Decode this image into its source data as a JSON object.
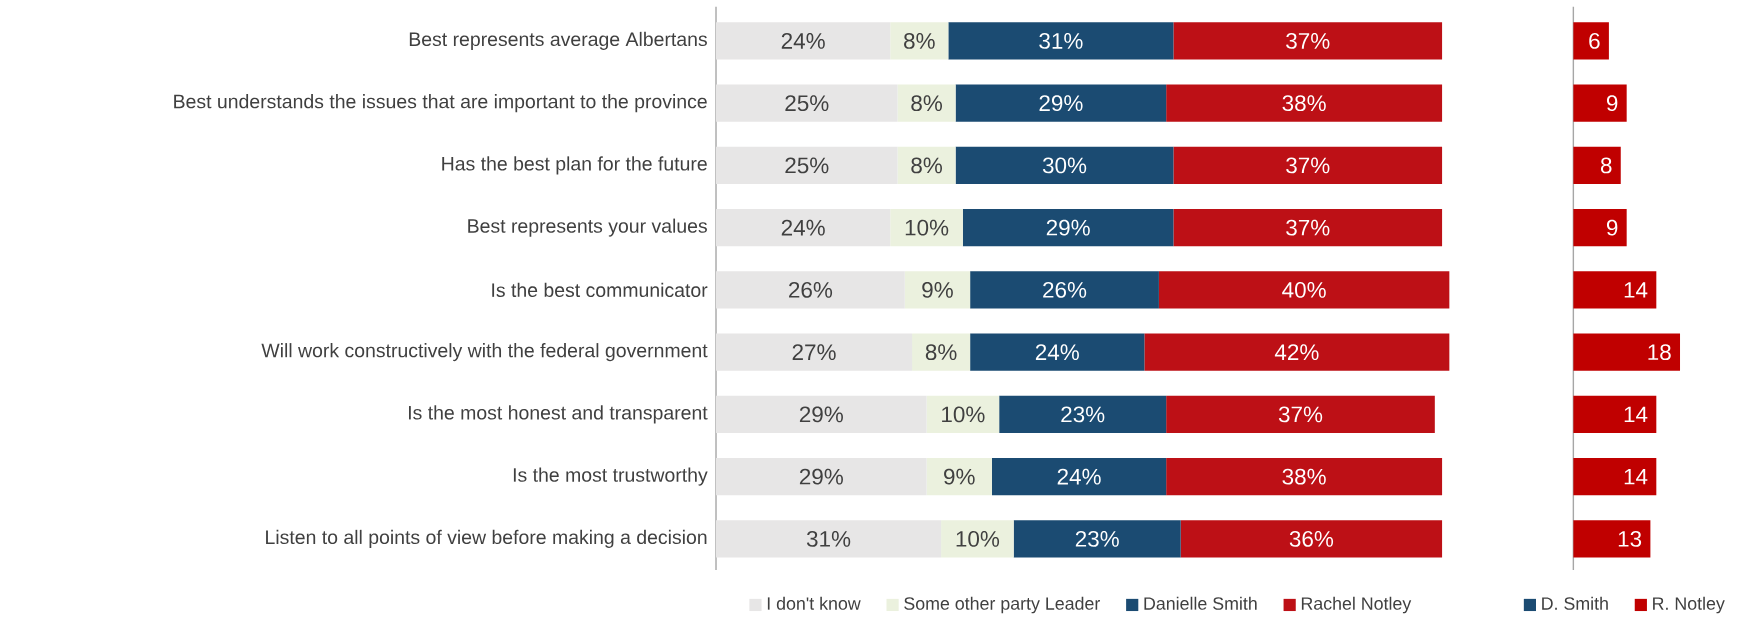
{
  "chart_data": [
    {
      "type": "bar",
      "orientation": "horizontal",
      "stacked": true,
      "legend": "bottom",
      "categories": [
        "Best represents average Albertans",
        "Best understands the issues that are important to the province",
        "Has the best plan for the future",
        "Best represents your values",
        "Is the best communicator",
        "Will work constructively with the federal government",
        "Is the most honest and transparent",
        "Is the most trustworthy",
        "Listen to all points of view before making a decision"
      ],
      "series": [
        {
          "name": "I don't know",
          "color": "#e7e6e6",
          "values": [
            24,
            25,
            25,
            24,
            26,
            27,
            29,
            29,
            31
          ],
          "value_labels": [
            "24%",
            "25%",
            "25%",
            "24%",
            "26%",
            "27%",
            "29%",
            "29%",
            "31%"
          ]
        },
        {
          "name": "Some other party Leader",
          "color": "#ebf1de",
          "values": [
            8,
            8,
            8,
            10,
            9,
            8,
            10,
            9,
            10
          ],
          "value_labels": [
            "8%",
            "8%",
            "8%",
            "10%",
            "9%",
            "8%",
            "10%",
            "9%",
            "10%"
          ]
        },
        {
          "name": "Danielle Smith",
          "color": "#1b4b72",
          "values": [
            31,
            29,
            30,
            29,
            26,
            24,
            23,
            24,
            23
          ],
          "value_labels": [
            "31%",
            "29%",
            "30%",
            "29%",
            "26%",
            "24%",
            "23%",
            "24%",
            "23%"
          ]
        },
        {
          "name": "Rachel Notley",
          "color": "#bd1016",
          "values": [
            37,
            38,
            37,
            37,
            40,
            42,
            37,
            38,
            36
          ],
          "value_labels": [
            "37%",
            "38%",
            "37%",
            "37%",
            "40%",
            "42%",
            "37%",
            "38%",
            "36%"
          ]
        }
      ]
    },
    {
      "type": "bar",
      "orientation": "horizontal",
      "stacked": true,
      "legend": "bottom",
      "data_labels": true,
      "categories": [
        null,
        null,
        null,
        null,
        null,
        null,
        null,
        null,
        null
      ],
      "series": [
        {
          "name": "D. Smith",
          "color": "#1b4b72",
          "values": [
            null,
            null,
            null,
            null,
            null,
            null,
            null,
            null,
            null
          ]
        },
        {
          "name": "R. Notley",
          "color": "#c00000",
          "values": [
            6,
            9,
            8,
            9,
            14,
            18,
            14,
            14,
            13
          ]
        }
      ]
    }
  ]
}
